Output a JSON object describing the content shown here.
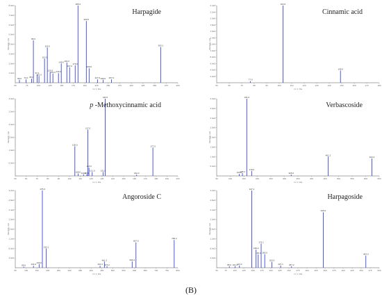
{
  "figure_label": "(B)",
  "chart_data": [
    {
      "type": "bar",
      "title": "Harpagide",
      "xlabel": "m / z, Da",
      "ylabel": "Intensity, cps",
      "xlim": [
        50,
        400
      ],
      "ylim": [
        0,
        8000000
      ],
      "xticks": [
        50,
        75,
        100,
        125,
        150,
        175,
        200,
        225,
        250,
        275,
        300,
        325,
        350,
        375,
        400
      ],
      "yticks": [
        1000000,
        2000000,
        3000000,
        4000000,
        5000000,
        6000000,
        7000000,
        8000000
      ],
      "ytick_labels": [
        "1.0e6",
        "2.0e6",
        "3.0e6",
        "4.0e6",
        "5.0e6",
        "6.0e6",
        "7.0e6",
        "8.0e6"
      ],
      "peaks": [
        {
          "mz": 59.0,
          "intensity": 300000,
          "label": "59.0"
        },
        {
          "mz": 73.0,
          "intensity": 350000,
          "label": "73.0"
        },
        {
          "mz": 85.0,
          "intensity": 420000,
          "label": "85.0"
        },
        {
          "mz": 89.0,
          "intensity": 4400000,
          "label": "89.0"
        },
        {
          "mz": 97.1,
          "intensity": 850000,
          "label": "97.1"
        },
        {
          "mz": 101.0,
          "intensity": 700000,
          "label": "101.0"
        },
        {
          "mz": 113.0,
          "intensity": 2500000,
          "label": "113.0"
        },
        {
          "mz": 119.0,
          "intensity": 3650000,
          "label": "119.0"
        },
        {
          "mz": 125.0,
          "intensity": 1100000,
          "label": "125.0"
        },
        {
          "mz": 131.0,
          "intensity": 950000,
          "label": "131.0"
        },
        {
          "mz": 143.0,
          "intensity": 1000000,
          "label": "143.0"
        },
        {
          "mz": 149.0,
          "intensity": 2000000,
          "label": "149.0"
        },
        {
          "mz": 161.0,
          "intensity": 2100000,
          "label": "161.0"
        },
        {
          "mz": 167.0,
          "intensity": 1600000,
          "label": "167.0"
        },
        {
          "mz": 179.0,
          "intensity": 1800000,
          "label": "179.0"
        },
        {
          "mz": 185.0,
          "intensity": 8000000,
          "label": "185.0"
        },
        {
          "mz": 203.0,
          "intensity": 6400000,
          "label": "203.0"
        },
        {
          "mz": 209.0,
          "intensity": 1500000,
          "label": "209.0"
        },
        {
          "mz": 227.0,
          "intensity": 350000,
          "label": "227.0"
        },
        {
          "mz": 239.0,
          "intensity": 300000,
          "label": "239.0"
        },
        {
          "mz": 257.0,
          "intensity": 350000,
          "label": "257.0"
        },
        {
          "mz": 363.1,
          "intensity": 3700000,
          "label": "363.1"
        }
      ]
    },
    {
      "type": "bar",
      "title": "Cinnamic acid",
      "xlabel": "m / z, Da",
      "ylabel": "Intensity, cps",
      "xlim": [
        50,
        180
      ],
      "ylim": [
        0,
        2400000
      ],
      "xticks": [
        50,
        60,
        70,
        80,
        90,
        100,
        110,
        120,
        130,
        140,
        150,
        160,
        170,
        180
      ],
      "yticks": [
        200000,
        400000,
        600000,
        800000,
        1000000,
        1200000,
        1400000,
        1600000,
        1800000,
        2000000,
        2200000,
        2400000
      ],
      "ytick_labels": [
        "2.0e5",
        "4.0e5",
        "6.0e5",
        "8.0e5",
        "1.0e6",
        "1.2e6",
        "1.4e6",
        "1.6e6",
        "1.8e6",
        "2.0e6",
        "2.2e6",
        "2.4e6"
      ],
      "peaks": [
        {
          "mz": 77.0,
          "intensity": 50000,
          "label": "77.0"
        },
        {
          "mz": 103.0,
          "intensity": 2400000,
          "label": "103.0"
        },
        {
          "mz": 149.0,
          "intensity": 380000,
          "label": "149.0"
        }
      ]
    },
    {
      "type": "bar",
      "title": "p-Methoxycinnamic acid",
      "title_prefix": "p",
      "title_rest": "-Methoxycinnamic acid",
      "xlabel": "m / z, Da",
      "ylabel": "Intensity, cps",
      "xlim": [
        50,
        200
      ],
      "ylim": [
        0,
        3000000
      ],
      "xticks": [
        50,
        60,
        70,
        80,
        90,
        100,
        110,
        120,
        130,
        140,
        150,
        160,
        170,
        180,
        190,
        200
      ],
      "yticks": [
        500000,
        1000000,
        1500000,
        2000000,
        2500000,
        3000000
      ],
      "ytick_labels": [
        "5.0e5",
        "1.0e6",
        "1.5e6",
        "2.0e6",
        "2.5e6",
        "3.0e6"
      ],
      "peaks": [
        {
          "mz": 105.0,
          "intensity": 1150000,
          "label": "105.0"
        },
        {
          "mz": 108.0,
          "intensity": 90000,
          "label": "108.0"
        },
        {
          "mz": 113.0,
          "intensity": 60000,
          "label": "113.0"
        },
        {
          "mz": 116.0,
          "intensity": 60000,
          "label": "116.0"
        },
        {
          "mz": 117.0,
          "intensity": 1800000,
          "label": "117.0"
        },
        {
          "mz": 118.0,
          "intensity": 320000,
          "label": "118.0"
        },
        {
          "mz": 121.0,
          "intensity": 150000,
          "label": "121.0"
        },
        {
          "mz": 131.0,
          "intensity": 150000,
          "label": "131.0"
        },
        {
          "mz": 133.0,
          "intensity": 3000000,
          "label": "133.0"
        },
        {
          "mz": 162.0,
          "intensity": 50000,
          "label": "162.0"
        },
        {
          "mz": 177.0,
          "intensity": 1100000,
          "label": "177.0"
        }
      ]
    },
    {
      "type": "bar",
      "title": "Verbascoside",
      "xlabel": "m / z, Da",
      "ylabel": "Intensity, cps",
      "xlim": [
        50,
        650
      ],
      "ylim": [
        0,
        4000000
      ],
      "xticks": [
        50,
        100,
        150,
        200,
        250,
        300,
        350,
        400,
        450,
        500,
        550,
        600,
        650
      ],
      "yticks": [
        500000,
        1000000,
        1500000,
        2000000,
        2500000,
        3000000,
        3500000,
        4000000
      ],
      "ytick_labels": [
        "5.0e5",
        "1.0e6",
        "1.5e6",
        "2.0e6",
        "2.5e6",
        "3.0e6",
        "3.5e6",
        "4.0e6"
      ],
      "peaks": [
        {
          "mz": 133.0,
          "intensity": 100000,
          "label": "133.0"
        },
        {
          "mz": 145.0,
          "intensity": 150000,
          "label": "145.0"
        },
        {
          "mz": 161.0,
          "intensity": 4000000,
          "label": "161.0"
        },
        {
          "mz": 179.0,
          "intensity": 260000,
          "label": "179.0"
        },
        {
          "mz": 325.0,
          "intensity": 70000,
          "label": "325.0"
        },
        {
          "mz": 461.2,
          "intensity": 1000000,
          "label": "461.2"
        },
        {
          "mz": 623.2,
          "intensity": 900000,
          "label": "623.2"
        }
      ]
    },
    {
      "type": "bar",
      "title": "Angoroside C",
      "xlabel": "m / z, Da",
      "ylabel": "Intensity, cps",
      "xlim": [
        50,
        800
      ],
      "ylim": [
        0,
        3200000
      ],
      "xticks": [
        50,
        100,
        150,
        200,
        250,
        300,
        350,
        400,
        450,
        500,
        550,
        600,
        650,
        700,
        750,
        800
      ],
      "yticks": [
        400000,
        800000,
        1200000,
        1600000,
        2000000,
        2400000,
        2800000,
        3200000
      ],
      "ytick_labels": [
        "4.0e5",
        "8.0e5",
        "1.2e6",
        "1.6e6",
        "2.0e6",
        "2.4e6",
        "2.8e6",
        "3.2e6"
      ],
      "peaks": [
        {
          "mz": 89.0,
          "intensity": 40000,
          "label": "89.0"
        },
        {
          "mz": 134.0,
          "intensity": 80000,
          "label": "134.0"
        },
        {
          "mz": 160.0,
          "intensity": 150000,
          "label": "160.0"
        },
        {
          "mz": 175.0,
          "intensity": 3200000,
          "label": "175.0"
        },
        {
          "mz": 193.1,
          "intensity": 800000,
          "label": "193.1"
        },
        {
          "mz": 441.3,
          "intensity": 80000,
          "label": "441.3"
        },
        {
          "mz": 461.3,
          "intensity": 250000,
          "label": "461.3"
        },
        {
          "mz": 473.2,
          "intensity": 60000,
          "label": "473.2"
        },
        {
          "mz": 589.4,
          "intensity": 260000,
          "label": "589.4"
        },
        {
          "mz": 607.0,
          "intensity": 1050000,
          "label": "607.0"
        },
        {
          "mz": 783.4,
          "intensity": 1150000,
          "label": "783.4"
        }
      ]
    },
    {
      "type": "bar",
      "title": "Harpagoside",
      "xlabel": "m / z, Da",
      "ylabel": "Intensity, cps",
      "xlim": [
        50,
        500
      ],
      "ylim": [
        0,
        3200000
      ],
      "xticks": [
        50,
        75,
        100,
        125,
        150,
        175,
        200,
        225,
        250,
        275,
        300,
        325,
        350,
        375,
        400,
        425,
        450,
        475,
        500
      ],
      "yticks": [
        400000,
        800000,
        1200000,
        1600000,
        2000000,
        2400000,
        2800000,
        3200000
      ],
      "ytick_labels": [
        "4.0e5",
        "8.0e5",
        "1.2e6",
        "1.6e6",
        "2.0e6",
        "2.4e6",
        "2.8e6",
        "3.2e6"
      ],
      "peaks": [
        {
          "mz": 85.0,
          "intensity": 60000,
          "label": "85.0"
        },
        {
          "mz": 101.0,
          "intensity": 60000,
          "label": "101.0"
        },
        {
          "mz": 113.0,
          "intensity": 90000,
          "label": "113.0"
        },
        {
          "mz": 147.1,
          "intensity": 3200000,
          "label": "147.1"
        },
        {
          "mz": 159.0,
          "intensity": 750000,
          "label": "159.0"
        },
        {
          "mz": 165.0,
          "intensity": 550000,
          "label": "165.0"
        },
        {
          "mz": 173.1,
          "intensity": 1000000,
          "label": "173.1"
        },
        {
          "mz": 183.0,
          "intensity": 560000,
          "label": "183.0"
        },
        {
          "mz": 203.0,
          "intensity": 240000,
          "label": "203.0"
        },
        {
          "mz": 227.1,
          "intensity": 90000,
          "label": "227.1"
        },
        {
          "mz": 257.2,
          "intensity": 60000,
          "label": "257.2"
        },
        {
          "mz": 345.0,
          "intensity": 2300000,
          "label": "345.0"
        },
        {
          "mz": 463.0,
          "intensity": 500000,
          "label": "463.0"
        }
      ]
    }
  ]
}
